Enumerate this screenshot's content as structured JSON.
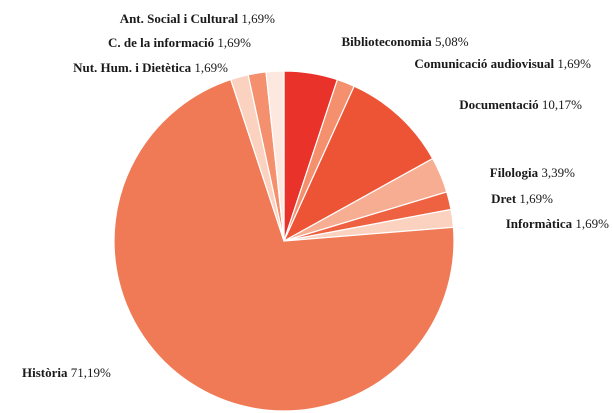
{
  "chart_data": {
    "type": "pie",
    "start_angle_deg": 0,
    "direction": "clockwise",
    "slices": [
      {
        "label": "Biblioteconomia",
        "value_text": "5,08%",
        "value": 5.08,
        "color": "#e8322a"
      },
      {
        "label": "Comunicació audiovisual",
        "value_text": "1,69%",
        "value": 1.69,
        "color": "#f4906e"
      },
      {
        "label": "Documentació",
        "value_text": "10,17%",
        "value": 10.17,
        "color": "#ed5435"
      },
      {
        "label": "Filologia",
        "value_text": "3,39%",
        "value": 3.39,
        "color": "#f7ad92"
      },
      {
        "label": "Dret",
        "value_text": "1,69%",
        "value": 1.69,
        "color": "#ee6242"
      },
      {
        "label": "Informàtica",
        "value_text": "1,69%",
        "value": 1.69,
        "color": "#fbd2c0"
      },
      {
        "label": "Història",
        "value_text": "71,19%",
        "value": 71.19,
        "color": "#f07a55"
      },
      {
        "label": "Nut. Hum. i Dietètica",
        "value_text": "1,69%",
        "value": 1.69,
        "color": "#fbd2c0"
      },
      {
        "label": "C. de la informació",
        "value_text": "1,69%",
        "value": 1.69,
        "color": "#f4906e"
      },
      {
        "label": "Ant. Social i Cultural",
        "value_text": "1,69%",
        "value": 1.69,
        "color": "#fde8e0"
      }
    ]
  }
}
